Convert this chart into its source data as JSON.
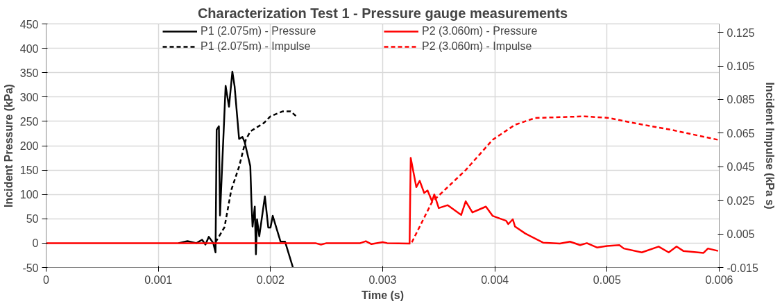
{
  "chart_data": {
    "type": "line",
    "title": "Characterization Test 1 - Pressure gauge measurements",
    "xlabel": "Time (s)",
    "ylabel": "Incident Pressure (kPa)",
    "y2label": "Incident Impulse (kPa s)",
    "xlim": [
      0,
      0.006
    ],
    "xticks": [
      0,
      0.001,
      0.002,
      0.003,
      0.004,
      0.005,
      0.006
    ],
    "ylim": [
      -50,
      450
    ],
    "yticks": [
      -50,
      0,
      50,
      100,
      150,
      200,
      250,
      300,
      350,
      400,
      450
    ],
    "y2lim": [
      -0.015,
      0.13
    ],
    "y2ticks": [
      -0.015,
      0.005,
      0.025,
      0.045,
      0.065,
      0.085,
      0.105,
      0.125
    ],
    "grid": true,
    "legend": "top",
    "marker": "none",
    "series": [
      {
        "name": "P1 (2.075m) - Pressure",
        "color": "#000000",
        "line_style": "solid",
        "x": [
          0.00118,
          0.00126,
          0.00134,
          0.00139,
          0.00142,
          0.00145,
          0.00149,
          0.00151,
          0.00152,
          0.00154,
          0.00155,
          0.0016,
          0.00163,
          0.00166,
          0.00168,
          0.00172,
          0.00175,
          0.00177,
          0.00182,
          0.00183,
          0.00184,
          0.00186,
          0.00187,
          0.00188,
          0.0019,
          0.00195,
          0.00198,
          0.002,
          0.00202,
          0.00209,
          0.00213,
          0.0022
        ],
        "values": [
          0,
          4,
          0,
          7,
          -3,
          13,
          0,
          -19,
          233,
          240,
          57,
          323,
          280,
          352,
          322,
          214,
          218,
          207,
          158,
          86,
          34,
          75,
          -23,
          49,
          14,
          96,
          32,
          32,
          56,
          3,
          3,
          -50
        ]
      },
      {
        "name": "P2 (3.060m) - Pressure",
        "color": "#ff0000",
        "line_style": "solid",
        "x": [
          0,
          0.0024,
          0.00245,
          0.0025,
          0.0028,
          0.00285,
          0.0029,
          0.003,
          0.00304,
          0.00324,
          0.00325,
          0.0033,
          0.00333,
          0.00337,
          0.0034,
          0.00344,
          0.00346,
          0.0035,
          0.00358,
          0.0037,
          0.00374,
          0.0038,
          0.00387,
          0.00392,
          0.00398,
          0.0041,
          0.00412,
          0.00416,
          0.00418,
          0.00427,
          0.00443,
          0.00458,
          0.00467,
          0.00476,
          0.00482,
          0.00491,
          0.005,
          0.00511,
          0.00515,
          0.00531,
          0.00546,
          0.00555,
          0.00562,
          0.00568,
          0.00586,
          0.0059,
          0.00599
        ],
        "values": [
          0,
          0,
          -3,
          0,
          0,
          4,
          -2,
          2,
          0,
          -1,
          175,
          115,
          128,
          103,
          108,
          86,
          100,
          72,
          78,
          58,
          86,
          63,
          70,
          75,
          56,
          46,
          39,
          49,
          34,
          20,
          1,
          -1,
          3,
          -4,
          0,
          -9,
          -6,
          -4,
          -11,
          -19,
          -7,
          -19,
          -7,
          -16,
          -20,
          -11,
          -16
        ]
      },
      {
        "name": "P1 (2.075m) - Impulse",
        "color": "#000000",
        "line_style": "dashed",
        "axis": "y2",
        "x": [
          0.00151,
          0.00159,
          0.00165,
          0.00172,
          0.00178,
          0.00182,
          0.00194,
          0.002,
          0.00211,
          0.00218,
          0.00223
        ],
        "values": [
          0,
          0.009,
          0.031,
          0.045,
          0.061,
          0.066,
          0.071,
          0.075,
          0.078,
          0.078,
          0.075
        ]
      },
      {
        "name": "P2 (3.060m) - Impulse",
        "color": "#ff0000",
        "line_style": "dashed",
        "axis": "y2",
        "x": [
          0.00326,
          0.00344,
          0.00374,
          0.00398,
          0.00418,
          0.00436,
          0.0048,
          0.00502,
          0.00524,
          0.00557,
          0.00599
        ],
        "values": [
          0,
          0.024,
          0.043,
          0.061,
          0.07,
          0.074,
          0.075,
          0.074,
          0.071,
          0.067,
          0.061
        ]
      }
    ]
  }
}
